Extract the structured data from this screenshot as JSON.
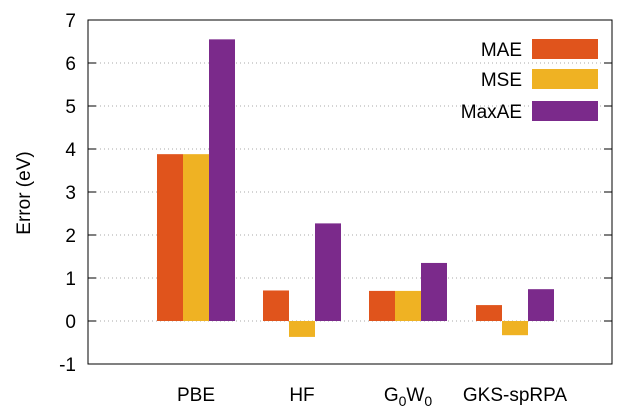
{
  "chart_data": {
    "type": "bar",
    "title": "",
    "xlabel": "",
    "ylabel": "Error (eV)",
    "ylim": [
      -1,
      7
    ],
    "yticks": [
      -1,
      0,
      1,
      2,
      3,
      4,
      5,
      6,
      7
    ],
    "grid": "dotted horizontal lines",
    "legend_position": "top-right",
    "categories": [
      "PBE",
      "HF",
      "G0W0",
      "GKS-spRPA"
    ],
    "category_display": [
      {
        "main": "PBE"
      },
      {
        "main": "HF"
      },
      {
        "main": "G",
        "sub1": "0",
        "mid": "W",
        "sub2": "0"
      },
      {
        "main": "GKS-spRPA"
      }
    ],
    "series": [
      {
        "name": "MAE",
        "color": "#e0541c",
        "values": [
          3.88,
          0.71,
          0.7,
          0.37
        ]
      },
      {
        "name": "MSE",
        "color": "#efb223",
        "values": [
          3.88,
          -0.37,
          0.7,
          -0.33
        ]
      },
      {
        "name": "MaxAE",
        "color": "#7b2a8b",
        "values": [
          6.55,
          2.27,
          1.35,
          0.74
        ]
      }
    ]
  }
}
